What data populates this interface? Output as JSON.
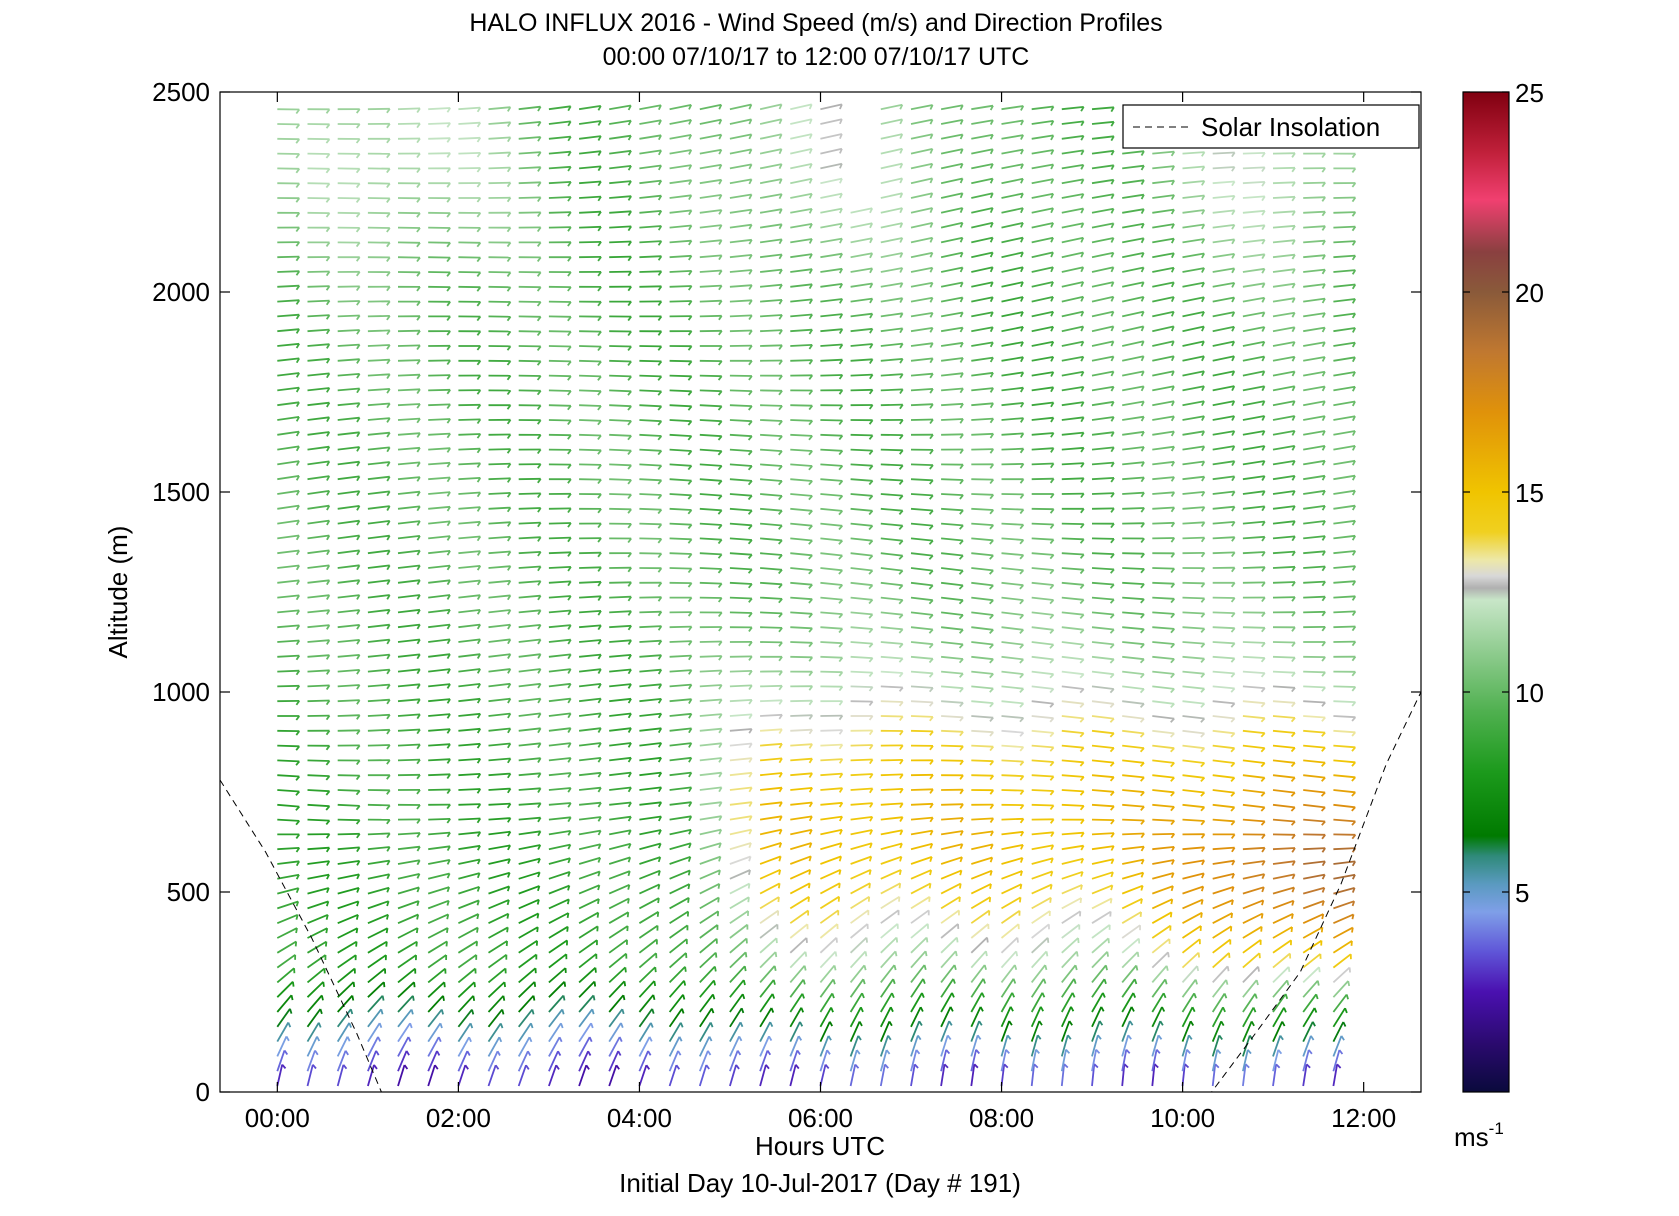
{
  "chart_data": {
    "type": "barb-profile",
    "title": "HALO INFLUX 2016 - Wind Speed (m/s) and Direction Profiles",
    "subtitle": "00:00 07/10/17 to 12:00 07/10/17  UTC",
    "xlabel": "Hours UTC",
    "xlabel2": "Initial Day 10-Jul-2017 (Day # 191)",
    "ylabel": "Altitude (m)",
    "xlim": [
      -0.6333,
      12.6333
    ],
    "ylim": [
      0,
      2500
    ],
    "xticks": [
      0,
      2,
      4,
      6,
      8,
      10,
      12
    ],
    "xtick_labels": [
      "00:00",
      "02:00",
      "04:00",
      "06:00",
      "08:00",
      "10:00",
      "12:00"
    ],
    "yticks": [
      0,
      500,
      1000,
      1500,
      2000,
      2500
    ],
    "ytick_labels": [
      "0",
      "500",
      "1000",
      "1500",
      "2000",
      "2500"
    ],
    "time_start": 0.0,
    "time_end": 11.67,
    "time_step": 0.3333,
    "alt_start": 15,
    "alt_end": 2485,
    "alt_step": 37,
    "colorbar": {
      "range": [
        0,
        25
      ],
      "ticks": [
        5,
        10,
        15,
        20,
        25
      ],
      "tick_labels": [
        "5",
        "10",
        "15",
        "20",
        "25"
      ],
      "unit_base": "ms",
      "unit_exp": "-1",
      "stops": [
        [
          0.0,
          "#0a0a3c"
        ],
        [
          1.2,
          "#2a0a6e"
        ],
        [
          2.5,
          "#4a10b0"
        ],
        [
          3.5,
          "#5f55d8"
        ],
        [
          4.5,
          "#7f9fe8"
        ],
        [
          5.2,
          "#5a9ac0"
        ],
        [
          5.9,
          "#2f8a7a"
        ],
        [
          6.4,
          "#007a00"
        ],
        [
          8.0,
          "#1c9a1c"
        ],
        [
          9.5,
          "#4fb04f"
        ],
        [
          11.0,
          "#8fcc8f"
        ],
        [
          12.3,
          "#c8e6c8"
        ],
        [
          12.6,
          "#b0b0b0"
        ],
        [
          12.9,
          "#d8d8d8"
        ],
        [
          13.3,
          "#ede8a8"
        ],
        [
          14.0,
          "#f0d020"
        ],
        [
          15.0,
          "#f0c400"
        ],
        [
          17.0,
          "#e0920a"
        ],
        [
          18.5,
          "#c07830"
        ],
        [
          20.0,
          "#8a5a3a"
        ],
        [
          21.0,
          "#8a4040"
        ],
        [
          22.3,
          "#f04070"
        ],
        [
          23.5,
          "#c0203a"
        ],
        [
          25.0,
          "#800010"
        ]
      ]
    },
    "legend": {
      "label": "Solar Insolation",
      "position": "top-right"
    },
    "insolation": {
      "x": [
        -0.6333,
        -0.13,
        0.38,
        0.88,
        1.15,
        10.32,
        10.8,
        11.3,
        11.75,
        12.25,
        12.6333
      ],
      "y": [
        780,
        600,
        385,
        145,
        0,
        0,
        145,
        300,
        520,
        820,
        1000
      ]
    },
    "gaps": [
      {
        "t": [
          6.1,
          6.45
        ],
        "alt": [
          2220,
          2500
        ]
      },
      {
        "t": [
          8.05,
          8.3
        ],
        "alt": [
          2420,
          2500
        ]
      },
      {
        "t": [
          8.65,
          8.95
        ],
        "alt": [
          2460,
          2500
        ]
      },
      {
        "t": [
          9.05,
          11.8
        ],
        "alt": [
          2380,
          2500
        ]
      }
    ],
    "speed_model": "speed(t, altitude m) ≈ 2.5+6*min(1,alt/300) rising to 9-10 m/s near 1300-1600 m; evening jet 14-17 m/s at 300-900 m after 05:00 UTC, 13-15 m/s near 500 m after 10:00 UTC; 11-15 m/s above 2100 m",
    "direction_model": "near-surface winds from the south (barbs point up) turning to westerly/southwesterly above 600 m; upper levels from the west-northwest"
  }
}
